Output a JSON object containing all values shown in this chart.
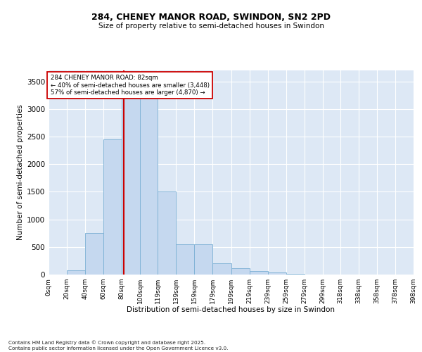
{
  "title_line1": "284, CHENEY MANOR ROAD, SWINDON, SN2 2PD",
  "title_line2": "Size of property relative to semi-detached houses in Swindon",
  "xlabel": "Distribution of semi-detached houses by size in Swindon",
  "ylabel": "Number of semi-detached properties",
  "bin_labels": [
    "0sqm",
    "20sqm",
    "40sqm",
    "60sqm",
    "80sqm",
    "100sqm",
    "119sqm",
    "139sqm",
    "159sqm",
    "179sqm",
    "199sqm",
    "219sqm",
    "239sqm",
    "259sqm",
    "279sqm",
    "299sqm",
    "318sqm",
    "338sqm",
    "358sqm",
    "378sqm",
    "398sqm"
  ],
  "bin_edges": [
    0,
    20,
    40,
    60,
    80,
    100,
    119,
    139,
    159,
    179,
    199,
    219,
    239,
    259,
    279,
    299,
    318,
    338,
    358,
    378,
    398
  ],
  "bar_heights": [
    5,
    80,
    750,
    2450,
    3350,
    3350,
    1510,
    550,
    550,
    200,
    110,
    60,
    35,
    15,
    5,
    2,
    1,
    0,
    0,
    0
  ],
  "bar_color": "#c5d8ef",
  "bar_edgecolor": "#7aafd4",
  "property_size": 82,
  "red_line_color": "#cc0000",
  "annotation_text_line1": "284 CHENEY MANOR ROAD: 82sqm",
  "annotation_text_line2": "← 40% of semi-detached houses are smaller (3,448)",
  "annotation_text_line3": "57% of semi-detached houses are larger (4,870) →",
  "annotation_box_color": "#ffffff",
  "annotation_box_edgecolor": "#cc0000",
  "ylim": [
    0,
    3700
  ],
  "yticks": [
    0,
    500,
    1000,
    1500,
    2000,
    2500,
    3000,
    3500
  ],
  "background_color": "#dde8f5",
  "grid_color": "#ffffff",
  "footer_line1": "Contains HM Land Registry data © Crown copyright and database right 2025.",
  "footer_line2": "Contains public sector information licensed under the Open Government Licence v3.0."
}
